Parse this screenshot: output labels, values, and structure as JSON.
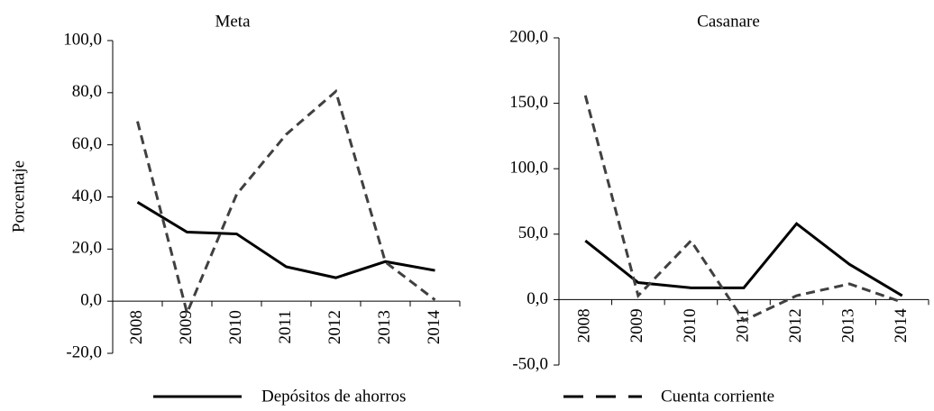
{
  "chart_data": [
    {
      "type": "line",
      "title": "Meta",
      "y_label": "Porcentaje",
      "categories": [
        "2008",
        "2009",
        "2010",
        "2011",
        "2012",
        "2013",
        "2014"
      ],
      "series": [
        {
          "name": "Depósitos de ahorros",
          "color": "#000000",
          "dash": false,
          "values": [
            38,
            26.5,
            25.8,
            13.2,
            9,
            15.2,
            11.8
          ]
        },
        {
          "name": "Cuenta corriente",
          "color": "#404040",
          "dash": true,
          "values": [
            69,
            -4.5,
            41,
            64,
            80.5,
            15,
            0.5
          ]
        }
      ],
      "ylim": [
        -20,
        100
      ],
      "yticks": [
        {
          "value": -20,
          "label": "-20,0"
        },
        {
          "value": 0,
          "label": "0,0"
        },
        {
          "value": 20,
          "label": "20,0"
        },
        {
          "value": 40,
          "label": "40,0"
        },
        {
          "value": 60,
          "label": "60,0"
        },
        {
          "value": 80,
          "label": "80,0"
        },
        {
          "value": 100,
          "label": "100,0"
        }
      ]
    },
    {
      "type": "line",
      "title": "Casanare",
      "categories": [
        "2008",
        "2009",
        "2010",
        "2011",
        "2012",
        "2013",
        "2014"
      ],
      "series": [
        {
          "color": "#000000",
          "dash": false,
          "values": [
            45,
            13,
            9,
            9,
            58,
            27,
            3
          ]
        },
        {
          "color": "#404040",
          "dash": true,
          "values": [
            156,
            3,
            45,
            -16,
            3,
            12,
            -2
          ]
        }
      ],
      "ylim": [
        -50,
        200
      ],
      "yticks": [
        {
          "value": -50,
          "label": "-50,0"
        },
        {
          "value": 0,
          "label": "0,0"
        },
        {
          "value": 50,
          "label": "50,0"
        },
        {
          "value": 100,
          "label": "100,0"
        },
        {
          "value": 150,
          "label": "150,0"
        },
        {
          "value": 200,
          "label": "200,0"
        }
      ]
    }
  ]
}
